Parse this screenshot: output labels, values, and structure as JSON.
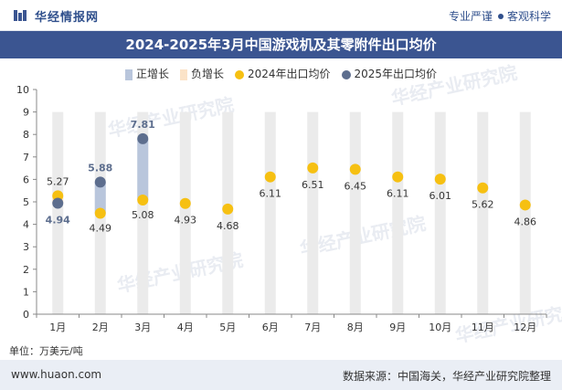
{
  "header": {
    "brand": "华经情报网",
    "slogan_left": "专业严谨",
    "slogan_right": "客观科学"
  },
  "title": "2024-2025年3月中国游戏机及其零附件出口均价",
  "legend": [
    {
      "label": "正增长",
      "color": "#b9c6dc",
      "shape": "rect"
    },
    {
      "label": "负增长",
      "color": "#fbe3c8",
      "shape": "rect"
    },
    {
      "label": "2024年出口均价",
      "color": "#f6c012",
      "shape": "circle"
    },
    {
      "label": "2025年出口均价",
      "color": "#5d6e8e",
      "shape": "circle"
    }
  ],
  "chart_data": {
    "type": "line",
    "categories": [
      "1月",
      "2月",
      "3月",
      "4月",
      "5月",
      "6月",
      "7月",
      "8月",
      "9月",
      "10月",
      "11月",
      "12月"
    ],
    "series": [
      {
        "name": "2024年出口均价",
        "color": "#f6c012",
        "values": [
          5.27,
          4.49,
          5.08,
          4.93,
          4.68,
          6.11,
          6.51,
          6.45,
          6.11,
          6.01,
          5.62,
          4.86
        ]
      },
      {
        "name": "2025年出口均价",
        "color": "#5d6e8e",
        "values": [
          4.94,
          5.88,
          7.81,
          null,
          null,
          null,
          null,
          null,
          null,
          null,
          null,
          null
        ]
      }
    ],
    "change_bars": {
      "positive_color": "#b9c6dc",
      "background_color": "#ebebeb"
    },
    "ylim": [
      0,
      10
    ],
    "yticks": [
      0,
      1,
      2,
      3,
      4,
      5,
      6,
      7,
      8,
      9,
      10
    ],
    "grid": false
  },
  "unit_label": "单位：万美元/吨",
  "footer": {
    "website": "www.huaon.com",
    "source": "数据来源：中国海关，华经产业研究院整理"
  },
  "watermark": "华经产业研究院"
}
